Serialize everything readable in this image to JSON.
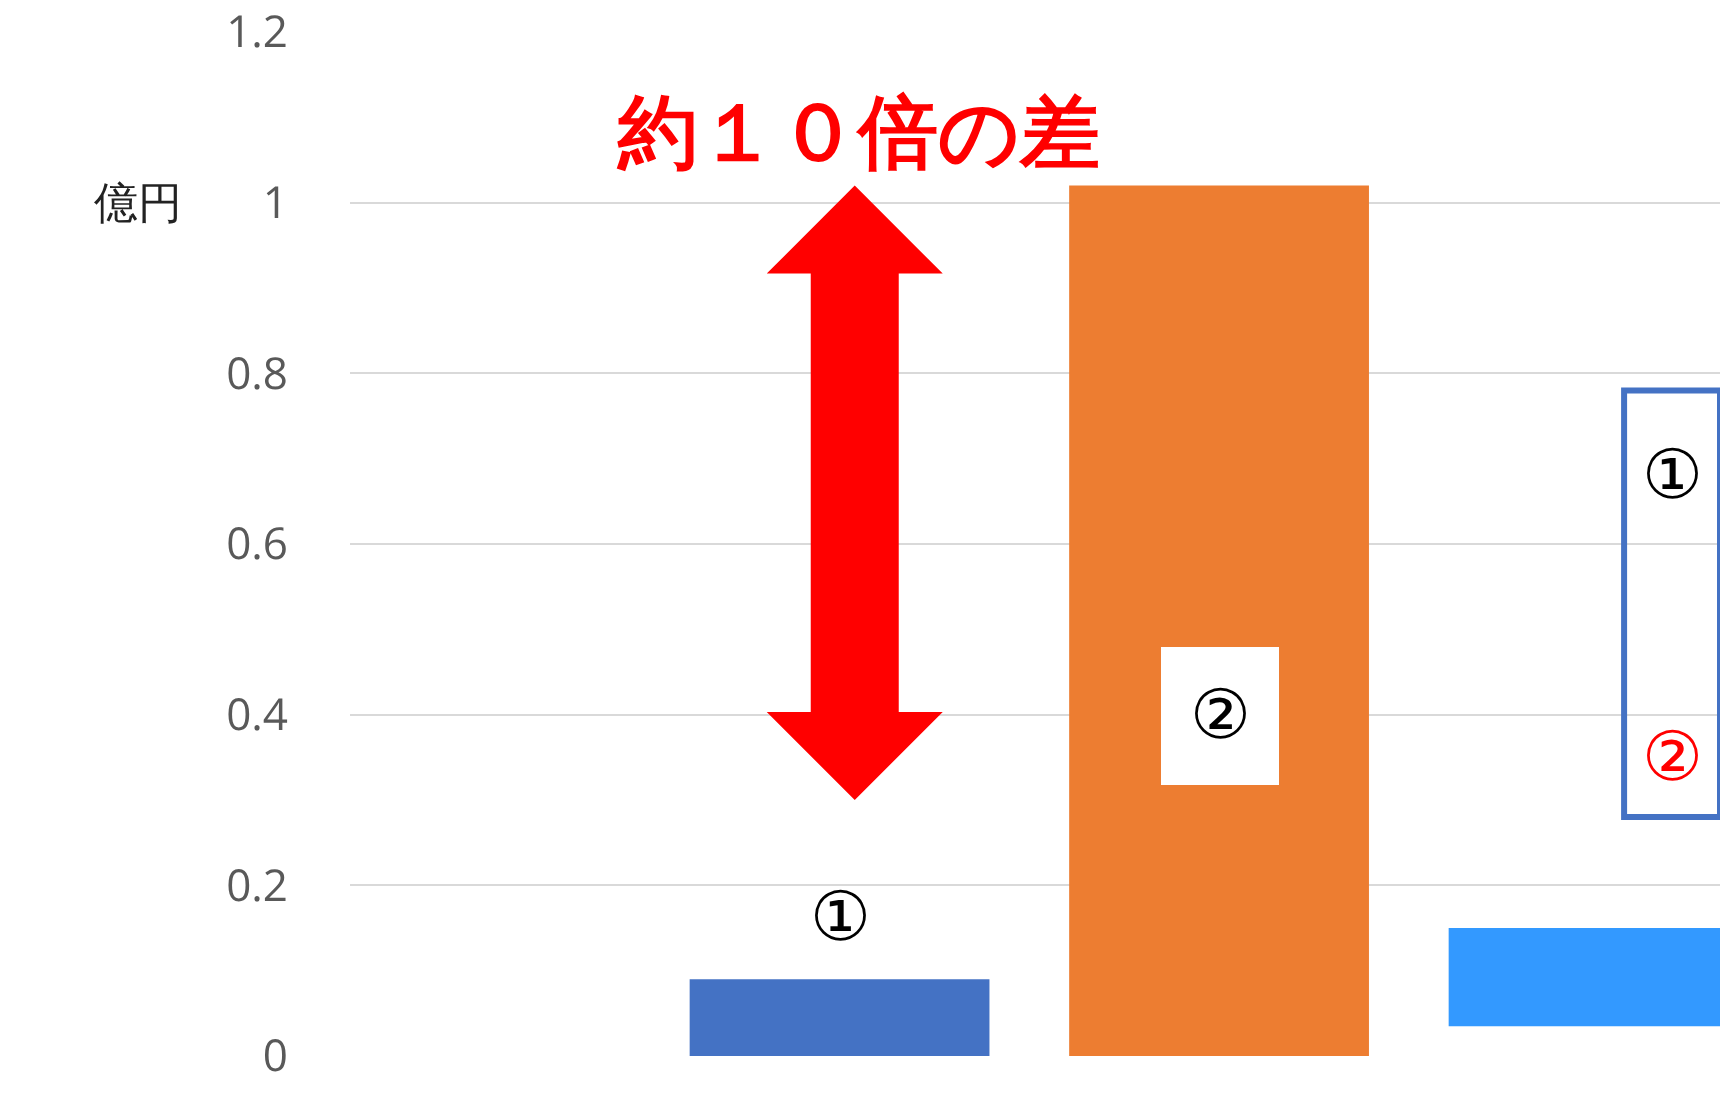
{
  "chart_data": {
    "type": "bar",
    "ylabel": "億円",
    "categories": [
      null,
      null,
      null
    ],
    "values": [
      0.09,
      1.02,
      0.115
    ],
    "base": [
      0,
      0,
      0.035
    ],
    "colors": [
      "#4472c4",
      "#ed7d31",
      "#3399ff"
    ],
    "value_labels": [
      "①",
      "②",
      null
    ],
    "annotations": [
      "約１０倍の差",
      "①",
      "②"
    ],
    "ylim": [
      0,
      1.2
    ],
    "yticks": [
      0,
      0.2,
      0.4,
      0.6,
      0.8,
      1,
      1.2
    ],
    "grid": "y"
  }
}
